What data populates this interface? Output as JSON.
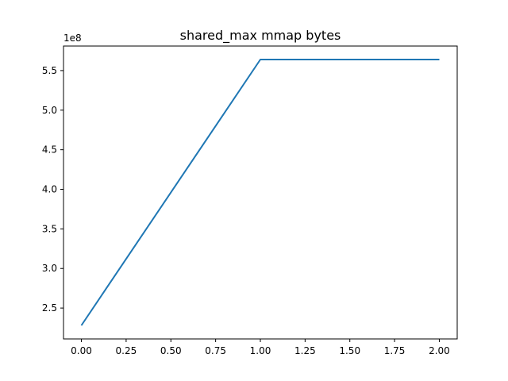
{
  "chart_data": {
    "type": "line",
    "title": "shared_max mmap bytes",
    "xlabel": "",
    "ylabel": "",
    "y_offset_label": "1e8",
    "xlim": [
      -0.1,
      2.1
    ],
    "ylim": [
      2.11,
      5.81
    ],
    "x_ticks": [
      0.0,
      0.25,
      0.5,
      0.75,
      1.0,
      1.25,
      1.5,
      1.75,
      2.0
    ],
    "x_tick_labels": [
      "0.00",
      "0.25",
      "0.50",
      "0.75",
      "1.00",
      "1.25",
      "1.50",
      "1.75",
      "2.00"
    ],
    "y_ticks": [
      2.5,
      3.0,
      3.5,
      4.0,
      4.5,
      5.0,
      5.5
    ],
    "y_tick_labels": [
      "2.5",
      "3.0",
      "3.5",
      "4.0",
      "4.5",
      "5.0",
      "5.5"
    ],
    "grid": false,
    "series": [
      {
        "x": [
          0,
          1,
          2
        ],
        "values": [
          2.28,
          5.64,
          5.64
        ],
        "color": "#1f77b4"
      }
    ]
  }
}
